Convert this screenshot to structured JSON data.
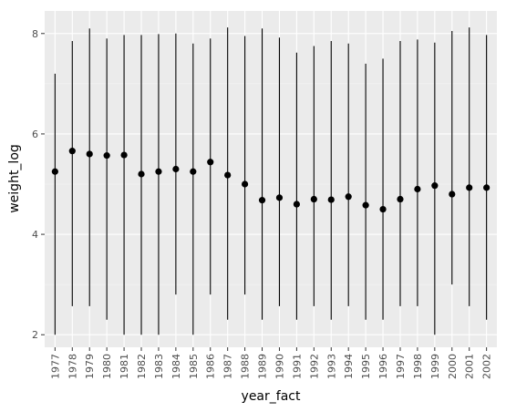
{
  "chart_data": {
    "type": "pointrange",
    "title": "",
    "xlabel": "year_fact",
    "ylabel": "weight_log",
    "ylim": [
      1.75,
      8.45
    ],
    "y_ticks": [
      2,
      4,
      6,
      8
    ],
    "y_tick_labels": [
      "2",
      "4",
      "6",
      "8"
    ],
    "grid": true,
    "legend": "none",
    "categories": [
      "1977",
      "1978",
      "1979",
      "1980",
      "1981",
      "1982",
      "1983",
      "1984",
      "1985",
      "1986",
      "1987",
      "1988",
      "1989",
      "1990",
      "1991",
      "1992",
      "1993",
      "1994",
      "1995",
      "1996",
      "1997",
      "1998",
      "1999",
      "2000",
      "2001",
      "2002"
    ],
    "series": [
      {
        "y": [
          5.25,
          5.66,
          5.6,
          5.57,
          5.58,
          5.2,
          5.25,
          5.3,
          5.25,
          5.44,
          5.18,
          5.0,
          4.68,
          4.73,
          4.6,
          4.7,
          4.69,
          4.75,
          4.58,
          4.5,
          4.7,
          4.9,
          4.97,
          4.8,
          4.93,
          4.93
        ],
        "ymin": [
          2.0,
          2.57,
          2.57,
          2.3,
          2.0,
          2.0,
          2.0,
          2.8,
          2.0,
          2.8,
          2.3,
          2.8,
          2.3,
          2.57,
          2.3,
          2.57,
          2.3,
          2.57,
          2.3,
          2.3,
          2.57,
          2.57,
          2.0,
          3.0,
          2.57,
          2.3
        ],
        "ymax": [
          7.2,
          7.85,
          8.1,
          7.9,
          7.97,
          7.97,
          7.99,
          8.0,
          7.8,
          7.9,
          8.12,
          7.95,
          8.1,
          7.92,
          7.62,
          7.75,
          7.85,
          7.8,
          7.4,
          7.5,
          7.85,
          7.88,
          7.82,
          8.05,
          8.12,
          7.97
        ]
      }
    ]
  }
}
